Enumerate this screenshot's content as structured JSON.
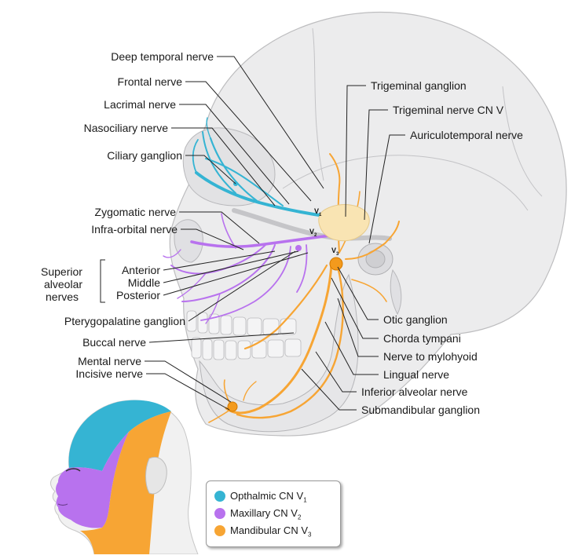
{
  "labels_left": {
    "deep_temporal": "Deep temporal nerve",
    "frontal": "Frontal nerve",
    "lacrimal": "Lacrimal nerve",
    "nasociliary": "Nasociliary nerve",
    "ciliary_ganglion": "Ciliary ganglion",
    "zygomatic": "Zygomatic nerve",
    "infra_orbital": "Infra-orbital nerve",
    "superior_alveolar_group": [
      "Superior",
      "alveolar",
      "nerves"
    ],
    "anterior": "Anterior",
    "middle": "Middle",
    "posterior": "Posterior",
    "pterygopalatine": "Pterygopalatine ganglion",
    "buccal": "Buccal nerve",
    "mental": "Mental nerve",
    "incisive": "Incisive nerve"
  },
  "labels_right": {
    "trigeminal_ganglion": "Trigeminal ganglion",
    "trigeminal_nerve": "Trigeminal nerve CN V",
    "auriculotemporal": "Auriculotemporal nerve",
    "otic_ganglion": "Otic ganglion",
    "chorda_tympani": "Chorda tympani",
    "nerve_to_mylohyoid": "Nerve to mylohyoid",
    "lingual": "Lingual nerve",
    "inferior_alveolar": "Inferior alveolar nerve",
    "submandibular_ganglion": "Submandibular ganglion"
  },
  "division_marks": [
    {
      "letter": "V",
      "index": "1"
    },
    {
      "letter": "V",
      "index": "2"
    },
    {
      "letter": "V",
      "index": "3"
    }
  ],
  "legend": [
    {
      "name": "Opthalmic CN V",
      "sub": "1",
      "color": "#35b4d3"
    },
    {
      "name": "Maxillary CN V",
      "sub": "2",
      "color": "#b872ee"
    },
    {
      "name": "Mandibular CN V",
      "sub": "3",
      "color": "#f7a534"
    }
  ],
  "colors": {
    "v1": "#35b4d3",
    "v2": "#b872ee",
    "v3": "#f7a534",
    "bone": "#e9e9ea",
    "leader": "#222222"
  }
}
